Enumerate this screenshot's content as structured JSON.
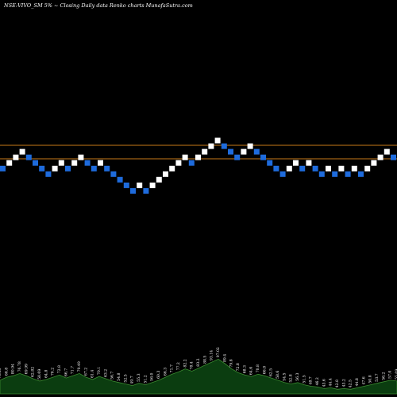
{
  "chart_data": {
    "type": "renko",
    "title": "NSE:VIVO_SM 5% ~  Closing Daily data  Renko  charts MunafaSutra.com",
    "colors": {
      "background": "#000000",
      "up_brick": "#ffffff",
      "down_brick": "#1e6bdc",
      "reference_line": "#c87a18",
      "volume_fill": "#0b3d10",
      "volume_stroke": "#3a8a30"
    },
    "bricks": [
      {
        "level": 5,
        "dir": "down"
      },
      {
        "level": 6,
        "dir": "up"
      },
      {
        "level": 7,
        "dir": "up"
      },
      {
        "level": 8,
        "dir": "up"
      },
      {
        "level": 7,
        "dir": "down"
      },
      {
        "level": 6,
        "dir": "down"
      },
      {
        "level": 5,
        "dir": "down"
      },
      {
        "level": 4,
        "dir": "down"
      },
      {
        "level": 5,
        "dir": "up"
      },
      {
        "level": 6,
        "dir": "up"
      },
      {
        "level": 5,
        "dir": "down"
      },
      {
        "level": 6,
        "dir": "up"
      },
      {
        "level": 7,
        "dir": "up"
      },
      {
        "level": 6,
        "dir": "down"
      },
      {
        "level": 5,
        "dir": "down"
      },
      {
        "level": 6,
        "dir": "up"
      },
      {
        "level": 5,
        "dir": "down"
      },
      {
        "level": 4,
        "dir": "down"
      },
      {
        "level": 3,
        "dir": "down"
      },
      {
        "level": 2,
        "dir": "down"
      },
      {
        "level": 1,
        "dir": "down"
      },
      {
        "level": 2,
        "dir": "up"
      },
      {
        "level": 1,
        "dir": "down"
      },
      {
        "level": 2,
        "dir": "up"
      },
      {
        "level": 3,
        "dir": "up"
      },
      {
        "level": 4,
        "dir": "up"
      },
      {
        "level": 5,
        "dir": "up"
      },
      {
        "level": 6,
        "dir": "up"
      },
      {
        "level": 7,
        "dir": "up"
      },
      {
        "level": 6,
        "dir": "down"
      },
      {
        "level": 7,
        "dir": "up"
      },
      {
        "level": 8,
        "dir": "up"
      },
      {
        "level": 9,
        "dir": "up"
      },
      {
        "level": 10,
        "dir": "up"
      },
      {
        "level": 9,
        "dir": "down"
      },
      {
        "level": 8,
        "dir": "down"
      },
      {
        "level": 7,
        "dir": "down"
      },
      {
        "level": 8,
        "dir": "up"
      },
      {
        "level": 9,
        "dir": "up"
      },
      {
        "level": 8,
        "dir": "down"
      },
      {
        "level": 7,
        "dir": "down"
      },
      {
        "level": 6,
        "dir": "down"
      },
      {
        "level": 5,
        "dir": "down"
      },
      {
        "level": 4,
        "dir": "down"
      },
      {
        "level": 5,
        "dir": "up"
      },
      {
        "level": 6,
        "dir": "up"
      },
      {
        "level": 5,
        "dir": "down"
      },
      {
        "level": 6,
        "dir": "up"
      },
      {
        "level": 5,
        "dir": "down"
      },
      {
        "level": 4,
        "dir": "down"
      },
      {
        "level": 5,
        "dir": "up"
      },
      {
        "level": 4,
        "dir": "down"
      },
      {
        "level": 5,
        "dir": "up"
      },
      {
        "level": 4,
        "dir": "down"
      },
      {
        "level": 5,
        "dir": "up"
      },
      {
        "level": 4,
        "dir": "down"
      },
      {
        "level": 5,
        "dir": "up"
      },
      {
        "level": 6,
        "dir": "up"
      },
      {
        "level": 7,
        "dir": "up"
      },
      {
        "level": 8,
        "dir": "up"
      },
      {
        "level": 7,
        "dir": "down"
      }
    ],
    "reference_lines": [
      9,
      6.6
    ],
    "volume": [
      18,
      22,
      24,
      27,
      24,
      20,
      17,
      19,
      22,
      25,
      21,
      24,
      27,
      22,
      19,
      23,
      20,
      17,
      15,
      13,
      11,
      14,
      12,
      15,
      18,
      22,
      26,
      29,
      33,
      30,
      34,
      38,
      42,
      46,
      40,
      33,
      28,
      25,
      23,
      26,
      24,
      21,
      18,
      15,
      13,
      15,
      12,
      10,
      9,
      7,
      8,
      6,
      7,
      6,
      8,
      10,
      12,
      14,
      16,
      18,
      17
    ],
    "volume_labels": [
      "73.35",
      "66.8",
      "80.94",
      "76.78",
      "69.99",
      "62.82",
      "58.69",
      "64.8",
      "70.2",
      "72.8",
      "66.7",
      "71.7",
      "79.49",
      "67.2",
      "61.4",
      "70.1",
      "63.2",
      "56.7",
      "54.8",
      "52.5",
      "49.7",
      "55.3",
      "51.2",
      "56.0",
      "60.3",
      "66.3",
      "71.7",
      "77.2",
      "82.2",
      "78.4",
      "83.2",
      "88.5",
      "93.14",
      "97.02",
      "89.4",
      "79.8",
      "72.8",
      "68.3",
      "64.6",
      "70.8",
      "66.8",
      "62.5",
      "58.6",
      "54.5",
      "52.8",
      "56.3",
      "51.5",
      "48.7",
      "46.2",
      "43.6",
      "44.4",
      "42.8",
      "43.2",
      "42.5",
      "44.8",
      "47.6",
      "50.8",
      "53.7",
      "56.2",
      "57.0",
      "55.09"
    ]
  }
}
